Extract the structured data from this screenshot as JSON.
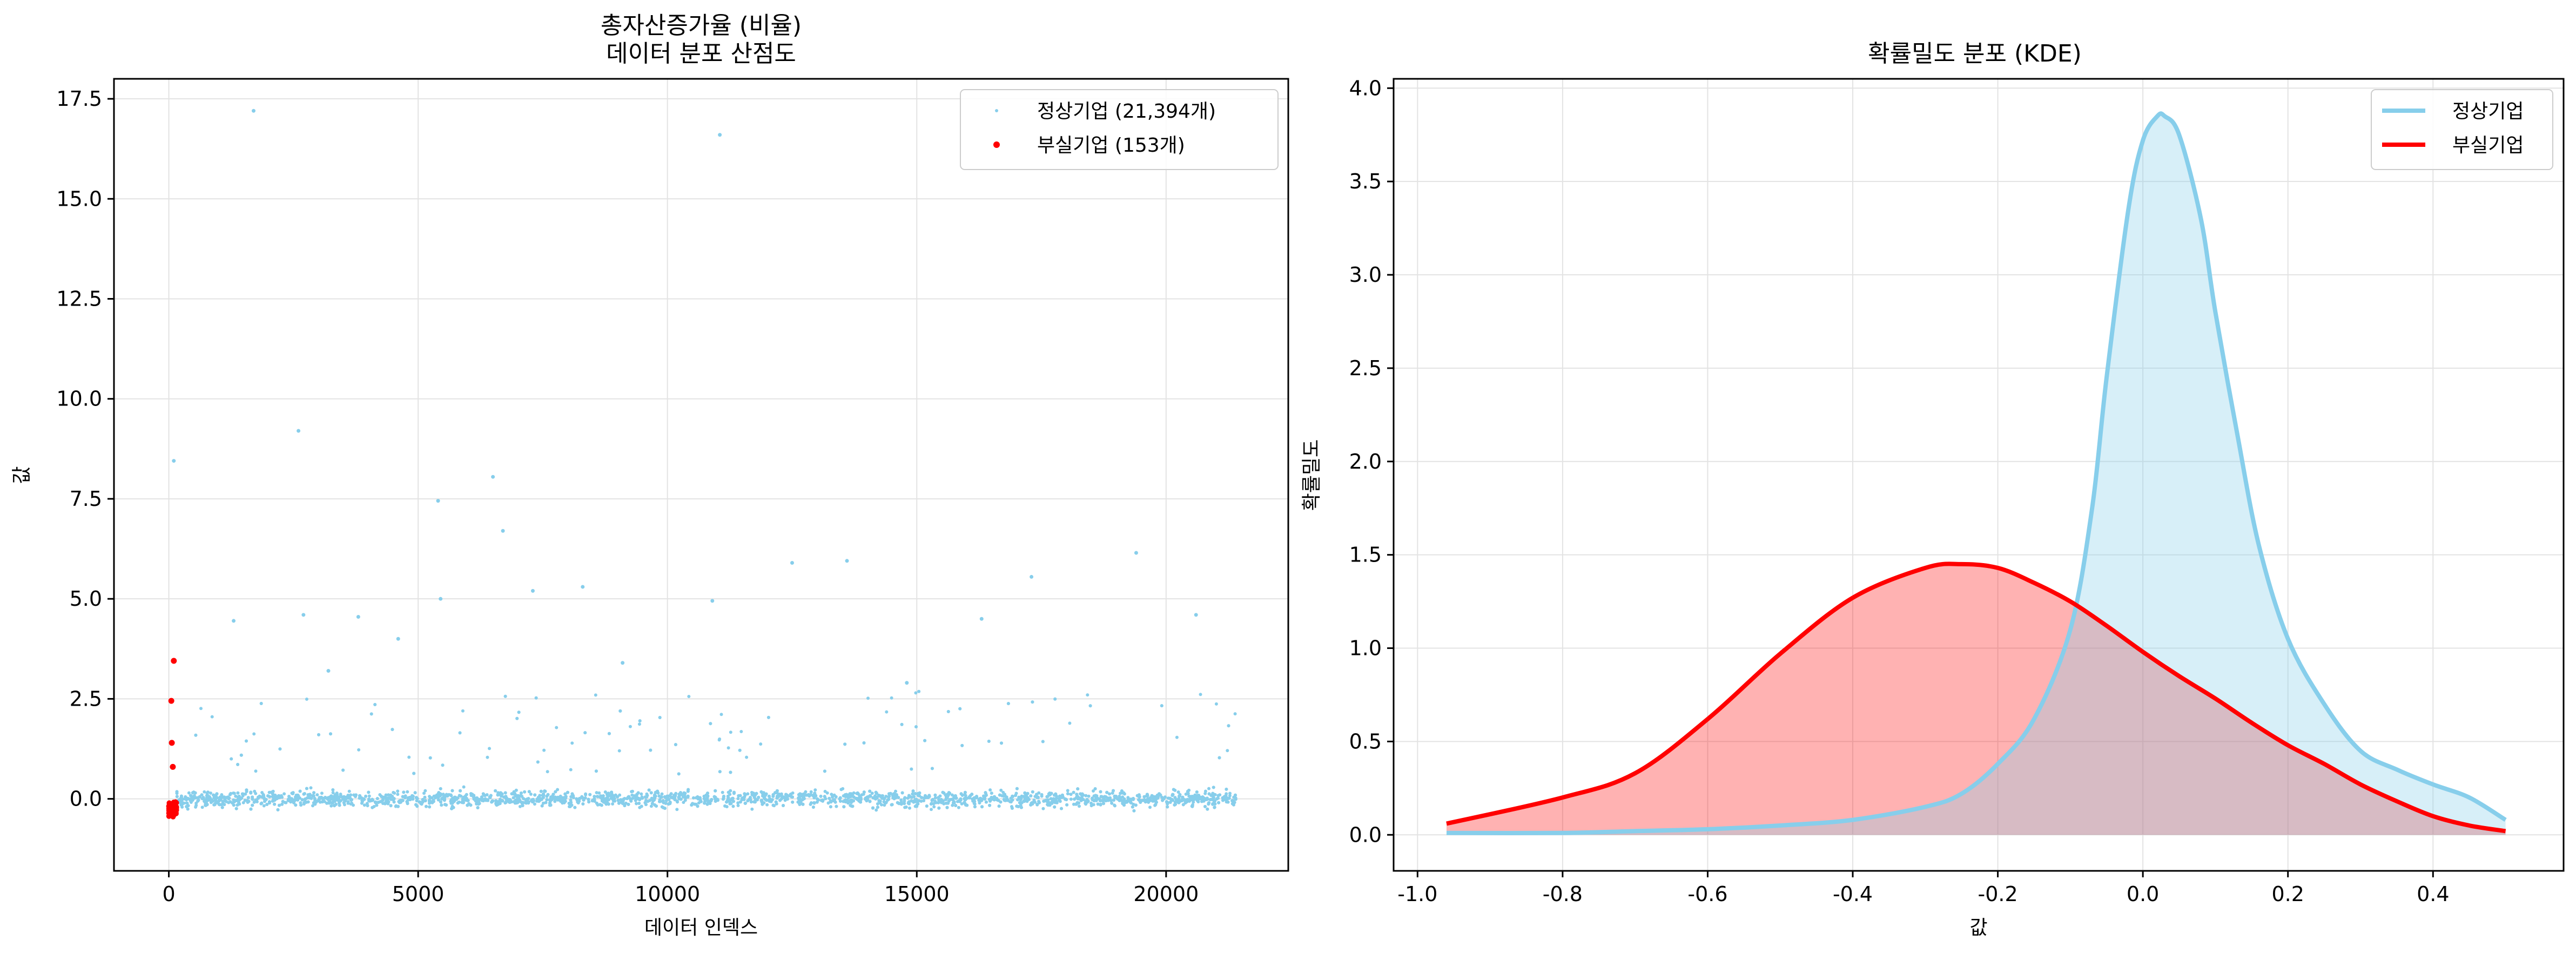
{
  "chart_data": [
    {
      "type": "scatter",
      "title": "총자산증가율 (비율)",
      "subtitle": "데이터 분포 산점도",
      "xlabel": "데이터 인덱스",
      "ylabel": "값",
      "xlim": [
        -1100,
        22450
      ],
      "ylim": [
        -1.8,
        18.0
      ],
      "xticks": [
        0,
        5000,
        10000,
        15000,
        20000
      ],
      "xtick_labels": [
        "0",
        "5000",
        "10000",
        "15000",
        "20000"
      ],
      "yticks": [
        0.0,
        2.5,
        5.0,
        7.5,
        10.0,
        12.5,
        15.0,
        17.5
      ],
      "ytick_labels": [
        "0.0",
        "2.5",
        "5.0",
        "7.5",
        "10.0",
        "12.5",
        "15.0",
        "17.5"
      ],
      "grid": true,
      "legend_position": "top-right",
      "series": [
        {
          "name": "정상기업 (21,394개)",
          "label": "정상기업 (21,394개)",
          "color": "#87CEEB",
          "count": 21394,
          "x_range": [
            150,
            21400
          ],
          "typical_range": [
            -0.8,
            0.6
          ],
          "outliers": [
            [
              1700,
              17.2
            ],
            [
              11050,
              16.6
            ],
            [
              2600,
              9.2
            ],
            [
              100,
              8.45
            ],
            [
              5400,
              7.45
            ],
            [
              6500,
              8.05
            ],
            [
              6700,
              6.7
            ],
            [
              5450,
              5.0
            ],
            [
              7300,
              5.2
            ],
            [
              8300,
              5.3
            ],
            [
              12500,
              5.9
            ],
            [
              13600,
              5.95
            ],
            [
              19400,
              6.15
            ],
            [
              10900,
              4.95
            ],
            [
              2700,
              4.6
            ],
            [
              1300,
              4.45
            ],
            [
              3800,
              4.55
            ],
            [
              4600,
              4.0
            ],
            [
              17300,
              5.55
            ],
            [
              20600,
              4.6
            ],
            [
              3200,
              3.2
            ],
            [
              9100,
              3.4
            ],
            [
              14800,
              2.9
            ],
            [
              16300,
              4.5
            ]
          ]
        },
        {
          "name": "부실기업 (153개)",
          "label": "부실기업 (153개)",
          "color": "#FF0000",
          "count": 153,
          "x_range": [
            0,
            153
          ],
          "typical_range": [
            -0.9,
            0.5
          ],
          "outliers": [
            [
              100,
              3.45
            ],
            [
              50,
              2.45
            ],
            [
              60,
              1.4
            ],
            [
              80,
              0.8
            ]
          ]
        }
      ]
    },
    {
      "type": "area",
      "title": "확률밀도 분포 (KDE)",
      "xlabel": "값",
      "ylabel": "확률밀도",
      "xlim": [
        -1.033,
        0.58
      ],
      "ylim": [
        -0.193,
        4.05
      ],
      "xticks": [
        -1.0,
        -0.8,
        -0.6,
        -0.4,
        -0.2,
        0.0,
        0.2,
        0.4
      ],
      "xtick_labels": [
        "-1.0",
        "-0.8",
        "-0.6",
        "-0.4",
        "-0.2",
        "0.0",
        "0.2",
        "0.4"
      ],
      "yticks": [
        0.0,
        0.5,
        1.0,
        1.5,
        2.0,
        2.5,
        3.0,
        3.5,
        4.0
      ],
      "ytick_labels": [
        "0.0",
        "0.5",
        "1.0",
        "1.5",
        "2.0",
        "2.5",
        "3.0",
        "3.5",
        "4.0"
      ],
      "grid": true,
      "legend_position": "top-right",
      "series": [
        {
          "name": "정상기업",
          "color": "#87CEEB",
          "x": [
            -0.96,
            -0.8,
            -0.7,
            -0.6,
            -0.5,
            -0.4,
            -0.3,
            -0.25,
            -0.2,
            -0.15,
            -0.1,
            -0.07,
            -0.05,
            -0.02,
            0.0,
            0.02,
            0.03,
            0.05,
            0.08,
            0.1,
            0.13,
            0.16,
            0.2,
            0.25,
            0.3,
            0.35,
            0.4,
            0.45,
            0.5
          ],
          "values": [
            0.01,
            0.01,
            0.02,
            0.03,
            0.05,
            0.08,
            0.15,
            0.22,
            0.38,
            0.62,
            1.1,
            1.75,
            2.45,
            3.35,
            3.72,
            3.85,
            3.85,
            3.75,
            3.3,
            2.8,
            2.15,
            1.55,
            1.05,
            0.7,
            0.45,
            0.35,
            0.27,
            0.2,
            0.08
          ]
        },
        {
          "name": "부실기업",
          "color": "#FF0000",
          "x": [
            -0.96,
            -0.8,
            -0.7,
            -0.6,
            -0.5,
            -0.4,
            -0.3,
            -0.25,
            -0.2,
            -0.15,
            -0.1,
            -0.05,
            0.0,
            0.05,
            0.1,
            0.15,
            0.2,
            0.25,
            0.3,
            0.35,
            0.4,
            0.45,
            0.5
          ],
          "values": [
            0.06,
            0.2,
            0.33,
            0.62,
            0.97,
            1.27,
            1.43,
            1.45,
            1.43,
            1.35,
            1.25,
            1.12,
            0.98,
            0.85,
            0.73,
            0.6,
            0.48,
            0.38,
            0.27,
            0.18,
            0.1,
            0.05,
            0.02
          ]
        }
      ]
    }
  ]
}
